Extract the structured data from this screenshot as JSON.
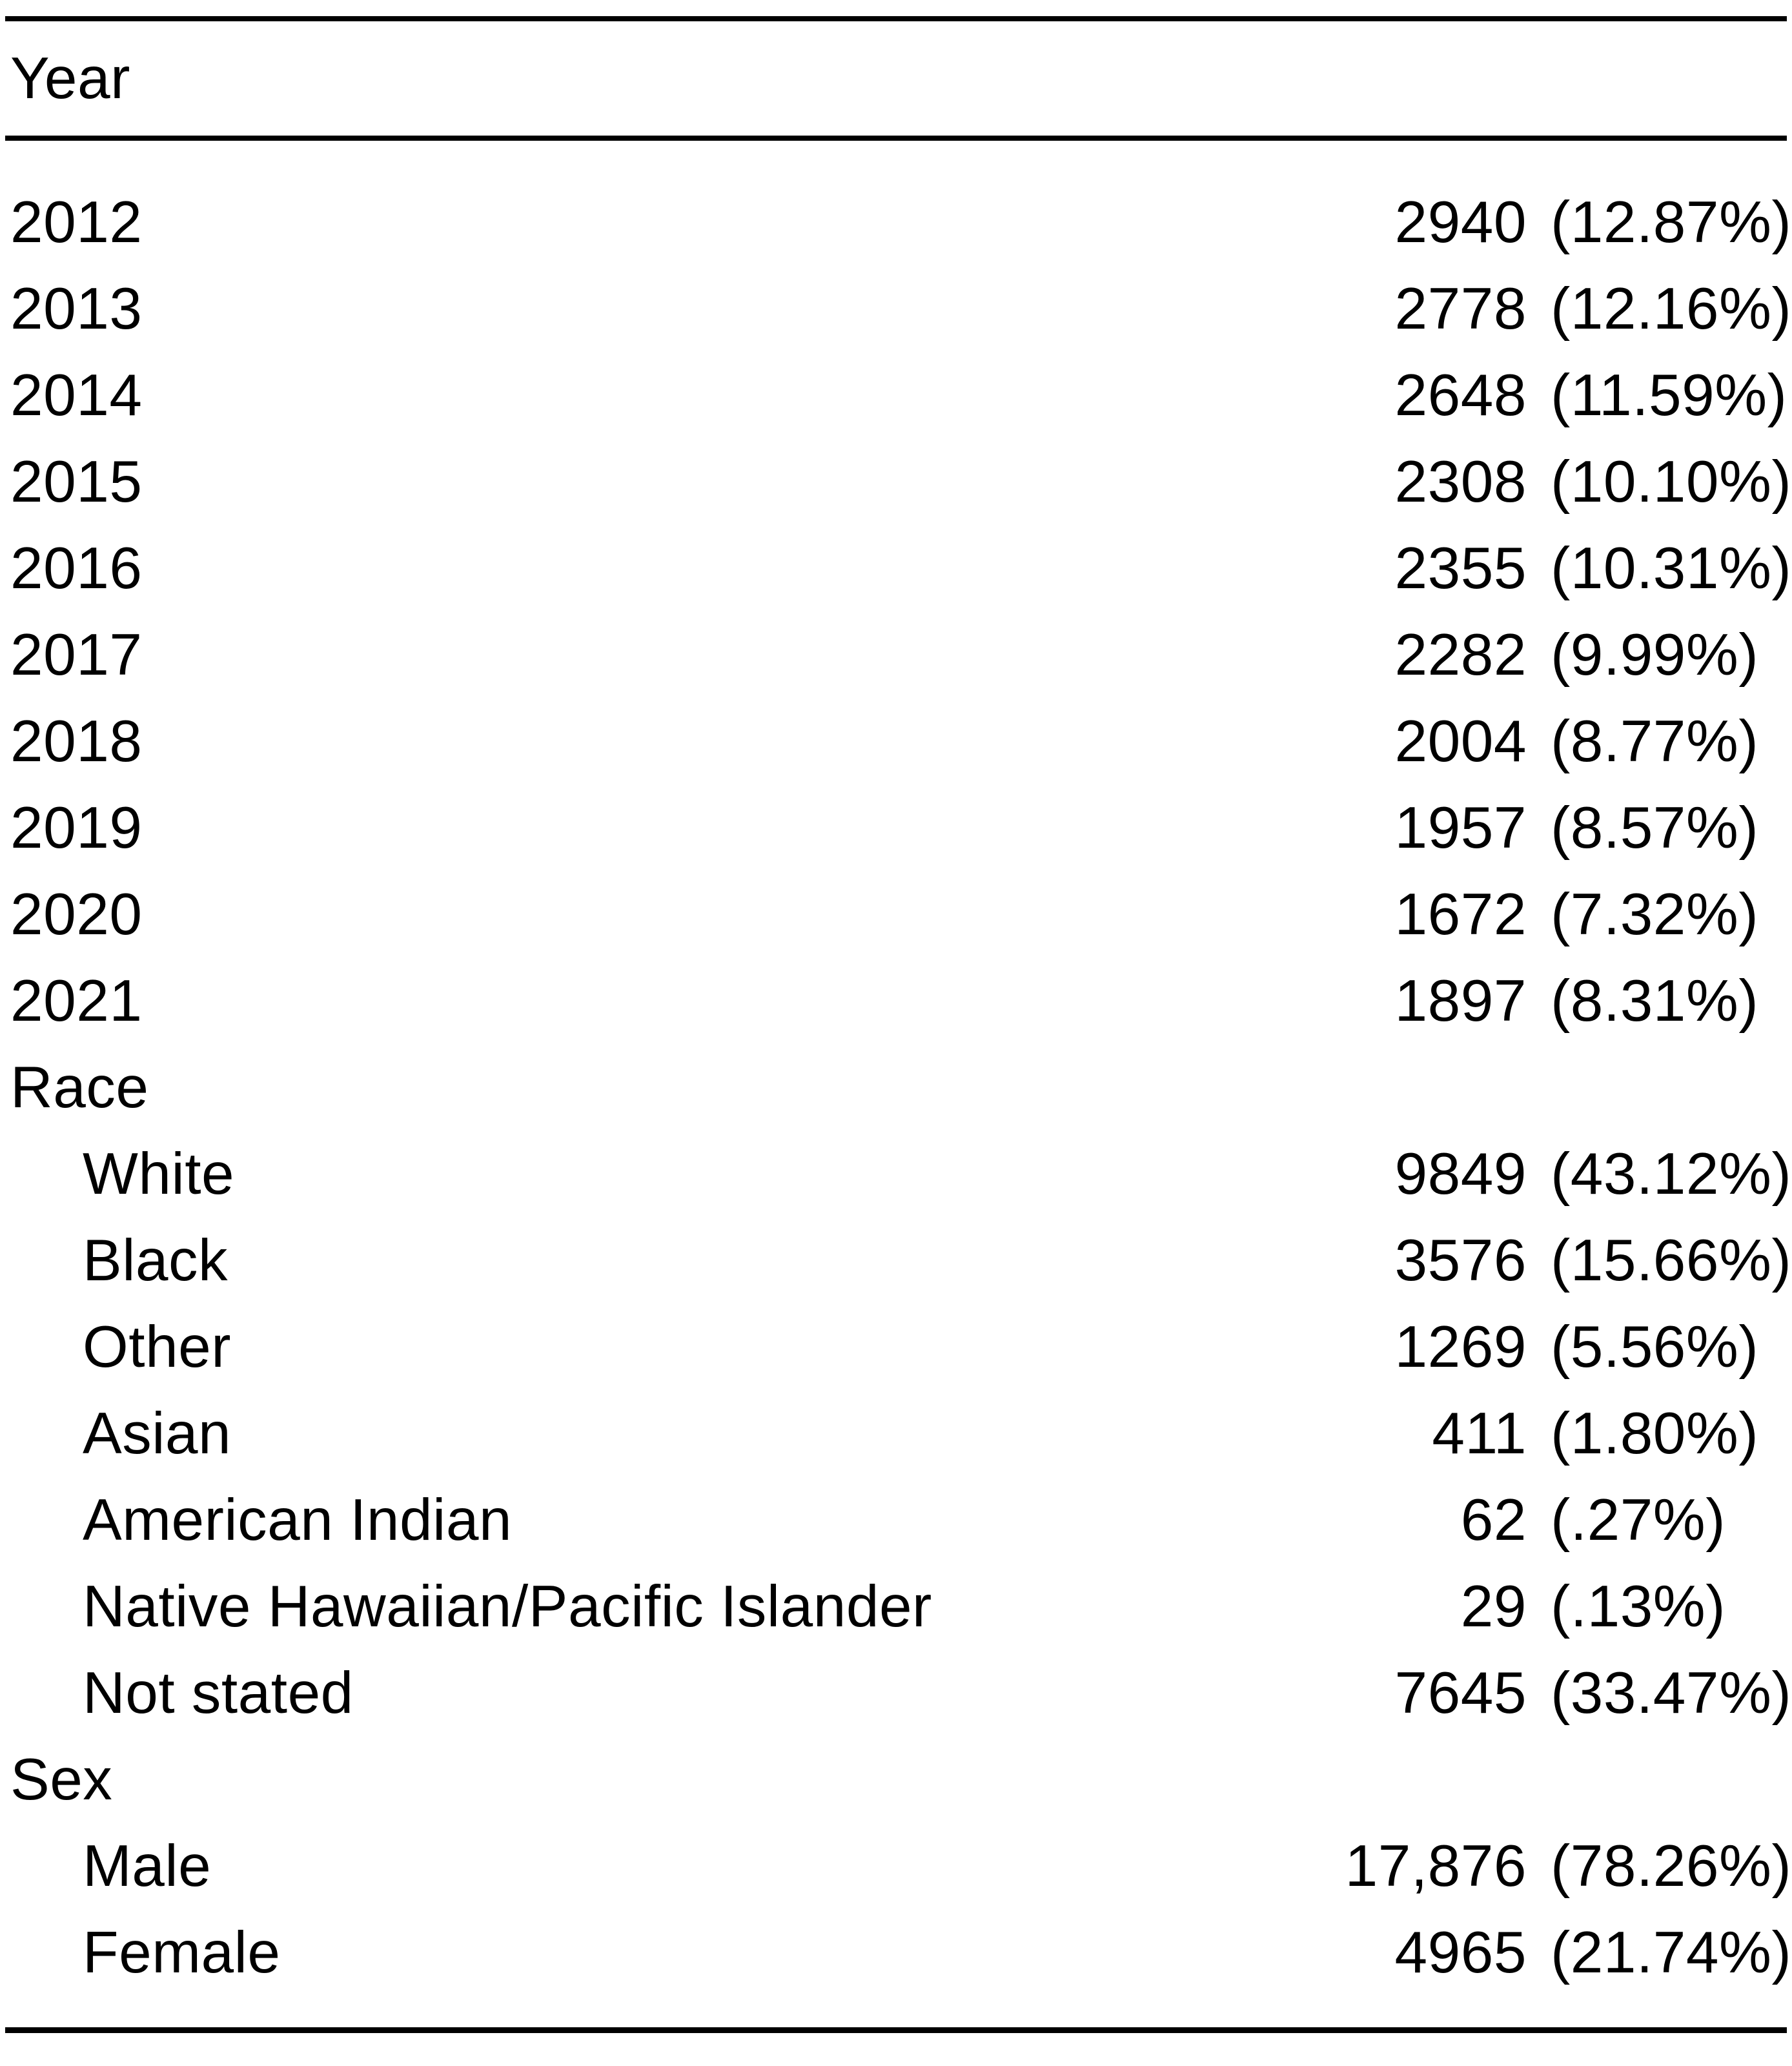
{
  "table": {
    "header": {
      "label": "Year"
    },
    "rows": [
      {
        "label": "2012",
        "count": "2940",
        "pct": "(12.87%)",
        "indent": false
      },
      {
        "label": "2013",
        "count": "2778",
        "pct": "(12.16%)",
        "indent": false
      },
      {
        "label": "2014",
        "count": "2648",
        "pct": "(11.59%)",
        "indent": false
      },
      {
        "label": "2015",
        "count": "2308",
        "pct": "(10.10%)",
        "indent": false
      },
      {
        "label": "2016",
        "count": "2355",
        "pct": "(10.31%)",
        "indent": false
      },
      {
        "label": "2017",
        "count": "2282",
        "pct": "(9.99%)",
        "indent": false
      },
      {
        "label": "2018",
        "count": "2004",
        "pct": "(8.77%)",
        "indent": false
      },
      {
        "label": "2019",
        "count": "1957",
        "pct": "(8.57%)",
        "indent": false
      },
      {
        "label": "2020",
        "count": "1672",
        "pct": "(7.32%)",
        "indent": false
      },
      {
        "label": "2021",
        "count": "1897",
        "pct": "(8.31%)",
        "indent": false
      },
      {
        "label": "Race",
        "count": "",
        "pct": "",
        "indent": false
      },
      {
        "label": "White",
        "count": "9849",
        "pct": "(43.12%)",
        "indent": true
      },
      {
        "label": "Black",
        "count": "3576",
        "pct": "(15.66%)",
        "indent": true
      },
      {
        "label": "Other",
        "count": "1269",
        "pct": "(5.56%)",
        "indent": true
      },
      {
        "label": "Asian",
        "count": "411",
        "pct": "(1.80%)",
        "indent": true
      },
      {
        "label": "American Indian",
        "count": "62",
        "pct": "(.27%)",
        "indent": true
      },
      {
        "label": "Native Hawaiian/Pacific Islander",
        "count": "29",
        "pct": "(.13%)",
        "indent": true
      },
      {
        "label": "Not stated",
        "count": "7645",
        "pct": "(33.47%)",
        "indent": true
      },
      {
        "label": "Sex",
        "count": "",
        "pct": "",
        "indent": false
      },
      {
        "label": "Male",
        "count": "17,876",
        "pct": "(78.26%)",
        "indent": true
      },
      {
        "label": "Female",
        "count": "4965",
        "pct": "(21.74%)",
        "indent": true
      }
    ]
  },
  "colors": {
    "text": "#000000",
    "background": "#ffffff",
    "rule": "#000000"
  }
}
